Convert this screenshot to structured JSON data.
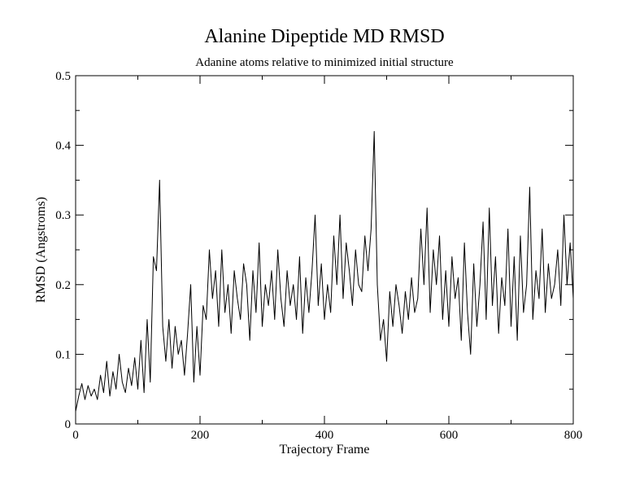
{
  "chart_data": {
    "type": "line",
    "title": "Alanine Dipeptide MD RMSD",
    "subtitle": "Adanine atoms relative to minimized initial structure",
    "x_label": "Trajectory Frame",
    "y_label": "RMSD (Angstroms)",
    "color": "#000000",
    "x": [
      0,
      5,
      10,
      15,
      20,
      25,
      30,
      35,
      40,
      45,
      50,
      55,
      60,
      65,
      70,
      75,
      80,
      85,
      90,
      95,
      100,
      105,
      110,
      115,
      120,
      125,
      130,
      135,
      140,
      145,
      150,
      155,
      160,
      165,
      170,
      175,
      180,
      185,
      190,
      195,
      200,
      205,
      210,
      215,
      220,
      225,
      230,
      235,
      240,
      245,
      250,
      255,
      260,
      265,
      270,
      275,
      280,
      285,
      290,
      295,
      300,
      305,
      310,
      315,
      320,
      325,
      330,
      335,
      340,
      345,
      350,
      355,
      360,
      365,
      370,
      375,
      380,
      385,
      390,
      395,
      400,
      405,
      410,
      415,
      420,
      425,
      430,
      435,
      440,
      445,
      450,
      455,
      460,
      465,
      470,
      475,
      480,
      485,
      490,
      495,
      500,
      505,
      510,
      515,
      520,
      525,
      530,
      535,
      540,
      545,
      550,
      555,
      560,
      565,
      570,
      575,
      580,
      585,
      590,
      595,
      600,
      605,
      610,
      615,
      620,
      625,
      630,
      635,
      640,
      645,
      650,
      655,
      660,
      665,
      670,
      675,
      680,
      685,
      690,
      695,
      700,
      705,
      710,
      715,
      720,
      725,
      730,
      735,
      740,
      745,
      750,
      755,
      760,
      765,
      770,
      775,
      780,
      785,
      790,
      795,
      800
    ],
    "values": [
      0.018,
      0.04,
      0.058,
      0.035,
      0.055,
      0.04,
      0.05,
      0.035,
      0.07,
      0.045,
      0.09,
      0.04,
      0.075,
      0.05,
      0.1,
      0.06,
      0.045,
      0.08,
      0.055,
      0.095,
      0.05,
      0.12,
      0.045,
      0.15,
      0.06,
      0.24,
      0.22,
      0.35,
      0.14,
      0.09,
      0.15,
      0.08,
      0.14,
      0.1,
      0.12,
      0.07,
      0.13,
      0.2,
      0.06,
      0.14,
      0.07,
      0.17,
      0.15,
      0.25,
      0.18,
      0.22,
      0.14,
      0.25,
      0.16,
      0.2,
      0.13,
      0.22,
      0.18,
      0.15,
      0.23,
      0.2,
      0.12,
      0.22,
      0.16,
      0.26,
      0.14,
      0.2,
      0.17,
      0.22,
      0.15,
      0.25,
      0.18,
      0.14,
      0.22,
      0.17,
      0.2,
      0.15,
      0.24,
      0.13,
      0.21,
      0.16,
      0.22,
      0.3,
      0.17,
      0.23,
      0.15,
      0.2,
      0.16,
      0.27,
      0.2,
      0.3,
      0.18,
      0.26,
      0.22,
      0.17,
      0.25,
      0.2,
      0.19,
      0.27,
      0.22,
      0.28,
      0.42,
      0.2,
      0.12,
      0.15,
      0.09,
      0.19,
      0.14,
      0.2,
      0.17,
      0.13,
      0.19,
      0.15,
      0.21,
      0.16,
      0.18,
      0.28,
      0.2,
      0.31,
      0.16,
      0.25,
      0.2,
      0.27,
      0.15,
      0.22,
      0.14,
      0.24,
      0.18,
      0.21,
      0.12,
      0.26,
      0.16,
      0.1,
      0.23,
      0.14,
      0.2,
      0.29,
      0.15,
      0.31,
      0.17,
      0.24,
      0.13,
      0.21,
      0.17,
      0.28,
      0.14,
      0.24,
      0.12,
      0.27,
      0.16,
      0.2,
      0.34,
      0.15,
      0.22,
      0.18,
      0.28,
      0.16,
      0.23,
      0.18,
      0.2,
      0.25,
      0.17,
      0.3,
      0.2,
      0.26,
      0.18
    ],
    "xlim": [
      0,
      800
    ],
    "xticks": [
      0,
      200,
      400,
      600,
      800
    ],
    "ylim": [
      0,
      0.5
    ],
    "yticks": [
      0,
      0.1,
      0.2,
      0.3,
      0.4,
      0.5
    ]
  }
}
